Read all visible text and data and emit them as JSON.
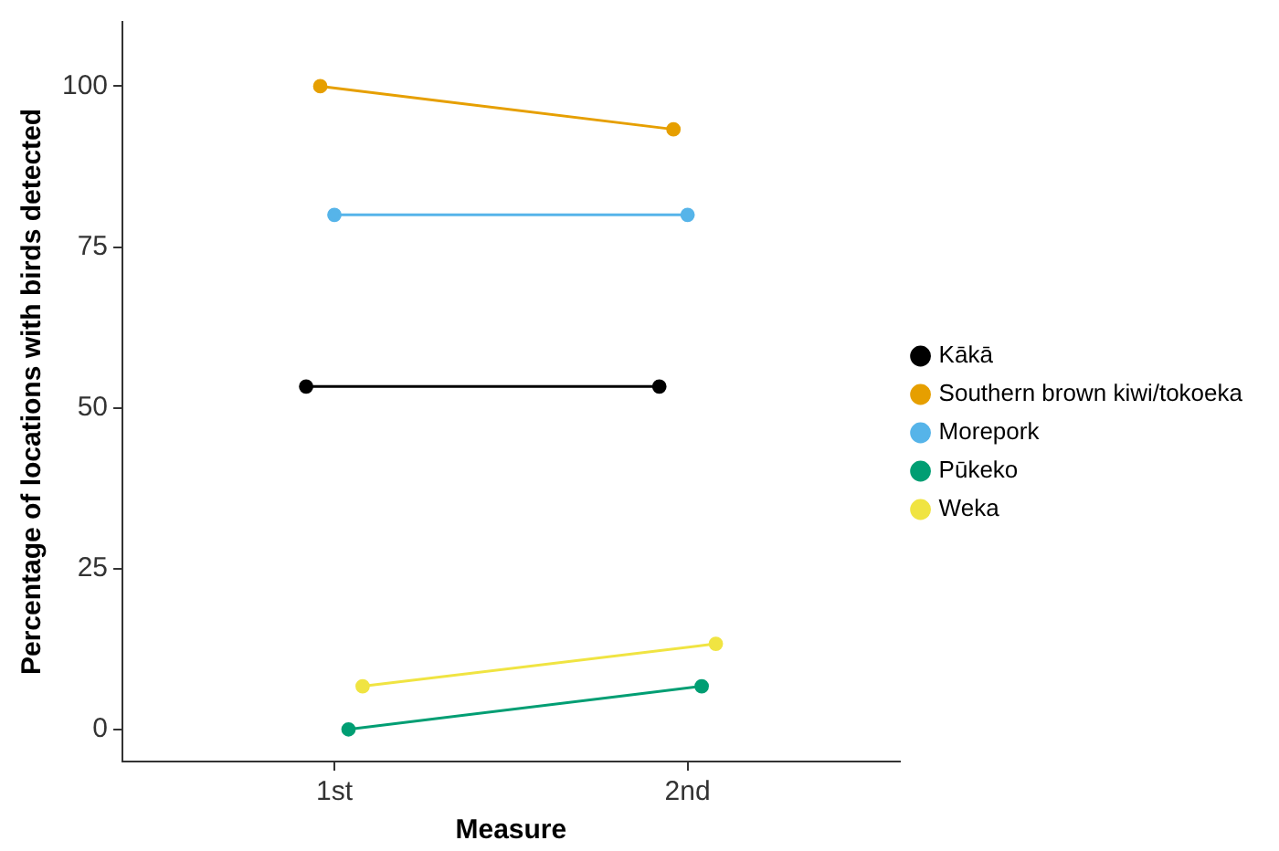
{
  "chart_data": {
    "type": "line",
    "xlabel": "Measure",
    "ylabel": "Percentage of locations with birds detected",
    "categories": [
      "1st",
      "2nd"
    ],
    "series": [
      {
        "name": "Kākā",
        "color": "#000000",
        "values": [
          53.3,
          53.3
        ]
      },
      {
        "name": "Southern brown kiwi/tokoeka",
        "color": "#e69f00",
        "values": [
          100,
          93.3
        ]
      },
      {
        "name": "Morepork",
        "color": "#56b4e9",
        "values": [
          80,
          80
        ]
      },
      {
        "name": "Pūkeko",
        "color": "#009e73",
        "values": [
          0,
          6.7
        ]
      },
      {
        "name": "Weka",
        "color": "#f0e442",
        "values": [
          6.7,
          13.3
        ]
      }
    ],
    "ylim": [
      -5,
      110
    ],
    "yticks": [
      0,
      25,
      50,
      75,
      100
    ],
    "grid": false,
    "legend": "right",
    "marker": "circle",
    "line_style": "solid"
  }
}
